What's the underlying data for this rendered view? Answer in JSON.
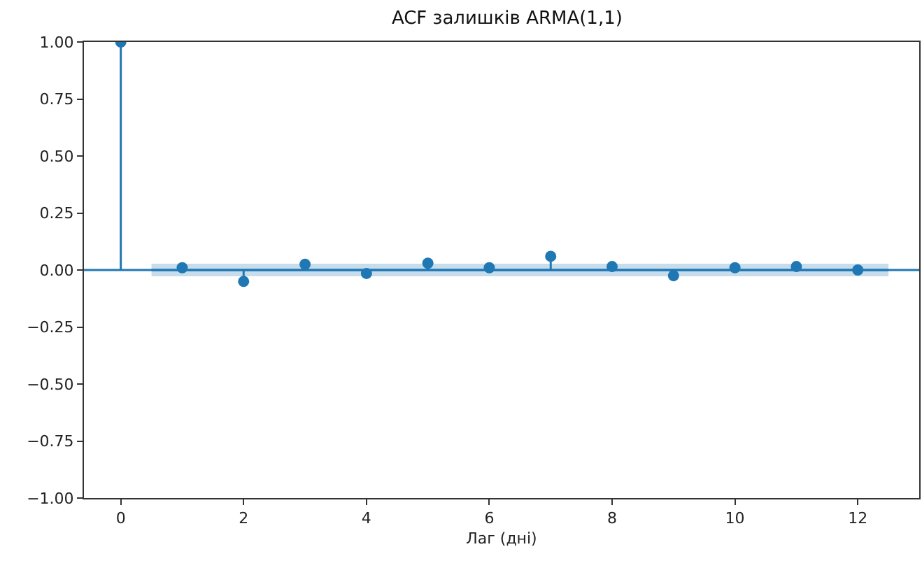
{
  "chart_data": {
    "type": "lollipop",
    "title": "ACF залишків ARMA(1,1)",
    "xlabel": "Лаг (дні)",
    "x": [
      0,
      1,
      2,
      3,
      4,
      5,
      6,
      7,
      8,
      9,
      10,
      11,
      12
    ],
    "series": [
      {
        "color": "#1f77b4",
        "values": [
          1.0,
          0.01,
          -0.05,
          0.025,
          -0.015,
          0.03,
          0.01,
          0.06,
          0.015,
          -0.025,
          0.01,
          0.015,
          0.0
        ]
      },
      {
        "type": "line",
        "marker": "none",
        "color": "#1f77b4",
        "x": [
          0.5,
          12.5
        ],
        "values": [
          0,
          0
        ],
        "lower": [
          -0.028,
          -0.028
        ],
        "upper": [
          0.028,
          0.028
        ]
      }
    ],
    "ref_lines": [
      {
        "axis": "y",
        "value": 0,
        "color": "#1f77b4"
      }
    ],
    "xlim": [
      -0.6,
      13.0
    ],
    "xticks": [
      0,
      2,
      4,
      6,
      8,
      10,
      12
    ],
    "ylim": [
      -1.0,
      1.0
    ],
    "yticks": [
      {
        "value": -1.0,
        "label": "−1.00"
      },
      {
        "value": -0.75,
        "label": "−0.75"
      },
      {
        "value": -0.5,
        "label": "−0.50"
      },
      {
        "value": -0.25,
        "label": "−0.25"
      },
      {
        "value": 0,
        "label": "0.00"
      },
      {
        "value": 0.25,
        "label": "0.25"
      },
      {
        "value": 0.5,
        "label": "0.50"
      },
      {
        "value": 0.75,
        "label": "0.75"
      },
      {
        "value": 1.0,
        "label": "1.00"
      }
    ],
    "marker": "circle",
    "grid": false
  }
}
